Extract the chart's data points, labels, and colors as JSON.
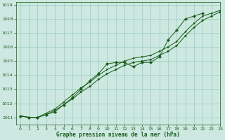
{
  "title": "",
  "xlabel": "Graphe pression niveau de la mer (hPa)",
  "ylabel": "",
  "bg_color": "#cce8e0",
  "grid_color": "#99ccbb",
  "line_color": "#1a5c1a",
  "xlim": [
    -0.5,
    23
  ],
  "ylim": [
    1010.5,
    1019.2
  ],
  "yticks": [
    1011,
    1012,
    1013,
    1014,
    1015,
    1016,
    1017,
    1018,
    1019
  ],
  "xticks": [
    0,
    1,
    2,
    3,
    4,
    5,
    6,
    7,
    8,
    9,
    10,
    11,
    12,
    13,
    14,
    15,
    16,
    17,
    18,
    19,
    20,
    21,
    22,
    23
  ],
  "series1_x": [
    0,
    1,
    2,
    3,
    4,
    5,
    6,
    7,
    8,
    9,
    10,
    11,
    12,
    13,
    14,
    15,
    16,
    17,
    18,
    19,
    20,
    21
  ],
  "series1_y": [
    1011.1,
    1011.0,
    1011.0,
    1011.2,
    1011.4,
    1011.9,
    1012.4,
    1013.0,
    1013.6,
    1014.1,
    1014.8,
    1014.9,
    1014.9,
    1014.6,
    1014.9,
    1014.9,
    1015.3,
    1016.5,
    1017.2,
    1018.0,
    1018.2,
    1018.4
  ],
  "series2_x": [
    0,
    1,
    2,
    3,
    4,
    5,
    6,
    7,
    8,
    9,
    10,
    11,
    12,
    13,
    14,
    15,
    16,
    17,
    18,
    19,
    20,
    21,
    22,
    23
  ],
  "series2_y": [
    1011.1,
    1011.0,
    1011.0,
    1011.2,
    1011.5,
    1011.9,
    1012.3,
    1012.8,
    1013.2,
    1013.7,
    1014.1,
    1014.4,
    1014.7,
    1014.9,
    1015.0,
    1015.1,
    1015.4,
    1015.7,
    1016.1,
    1016.8,
    1017.4,
    1017.9,
    1018.2,
    1018.5
  ],
  "series3_x": [
    0,
    1,
    2,
    3,
    4,
    5,
    6,
    7,
    8,
    9,
    10,
    11,
    12,
    13,
    14,
    15,
    16,
    17,
    18,
    19,
    20,
    21,
    22,
    23
  ],
  "series3_y": [
    1011.1,
    1011.0,
    1011.0,
    1011.3,
    1011.6,
    1012.1,
    1012.6,
    1013.1,
    1013.5,
    1014.0,
    1014.4,
    1014.7,
    1015.0,
    1015.2,
    1015.3,
    1015.4,
    1015.7,
    1016.0,
    1016.4,
    1017.1,
    1017.7,
    1018.2,
    1018.4,
    1018.6
  ]
}
